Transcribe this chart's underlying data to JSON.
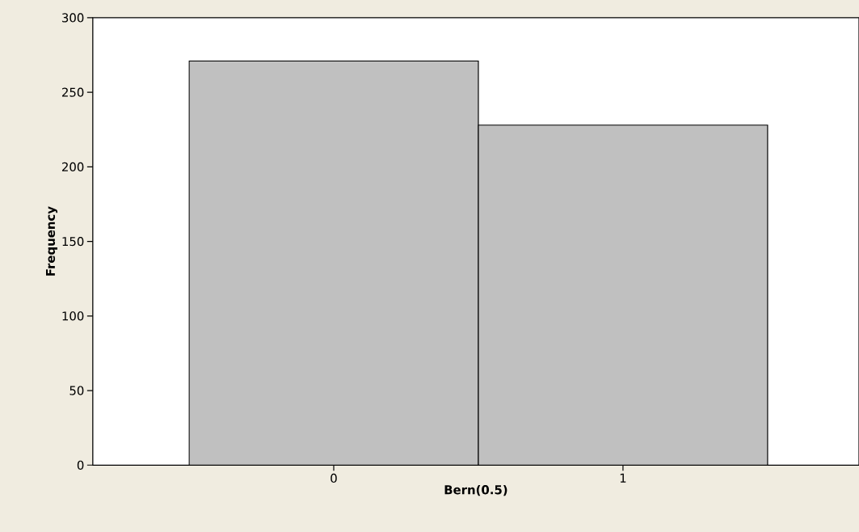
{
  "chart_data": {
    "type": "histogram",
    "xlabel": "Bern(0.5)",
    "ylabel": "Frequency",
    "bins": [
      -0.5,
      0.5,
      1.5
    ],
    "values": [
      271,
      228
    ],
    "color": "#c0c0c0",
    "xlim": [
      -0.833,
      1.816
    ],
    "xticks": [
      0,
      1
    ],
    "ylim": [
      0,
      300
    ],
    "yticks": [
      0,
      50,
      100,
      150,
      200,
      250,
      300
    ],
    "grid": false
  }
}
